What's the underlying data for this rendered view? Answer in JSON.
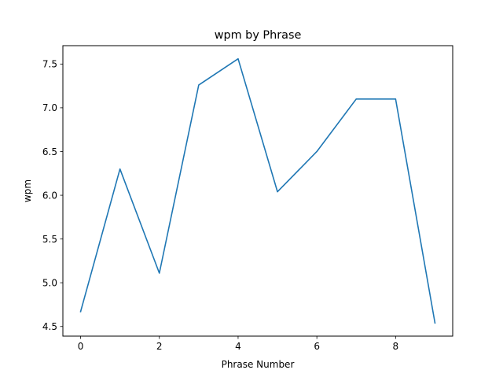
{
  "chart_data": {
    "type": "line",
    "title": "wpm by Phrase",
    "xlabel": "Phrase Number",
    "ylabel": "wpm",
    "x": [
      0,
      1,
      2,
      3,
      4,
      5,
      6,
      7,
      8,
      9
    ],
    "series": [
      {
        "values": [
          4.67,
          6.3,
          5.11,
          7.26,
          7.56,
          6.04,
          6.5,
          7.1,
          7.1,
          4.54
        ],
        "color": "#1f77b4"
      }
    ],
    "xlim": [
      -0.45,
      9.45
    ],
    "ylim": [
      4.39,
      7.71
    ],
    "xticks": [
      0,
      2,
      4,
      6,
      8
    ],
    "xtick_labels": [
      "0",
      "2",
      "4",
      "6",
      "8"
    ],
    "yticks": [
      4.5,
      5.0,
      5.5,
      6.0,
      6.5,
      7.0,
      7.5
    ],
    "ytick_labels": [
      "4.5",
      "5.0",
      "5.5",
      "6.0",
      "6.5",
      "7.0",
      "7.5"
    ],
    "grid": false,
    "legend": false
  }
}
